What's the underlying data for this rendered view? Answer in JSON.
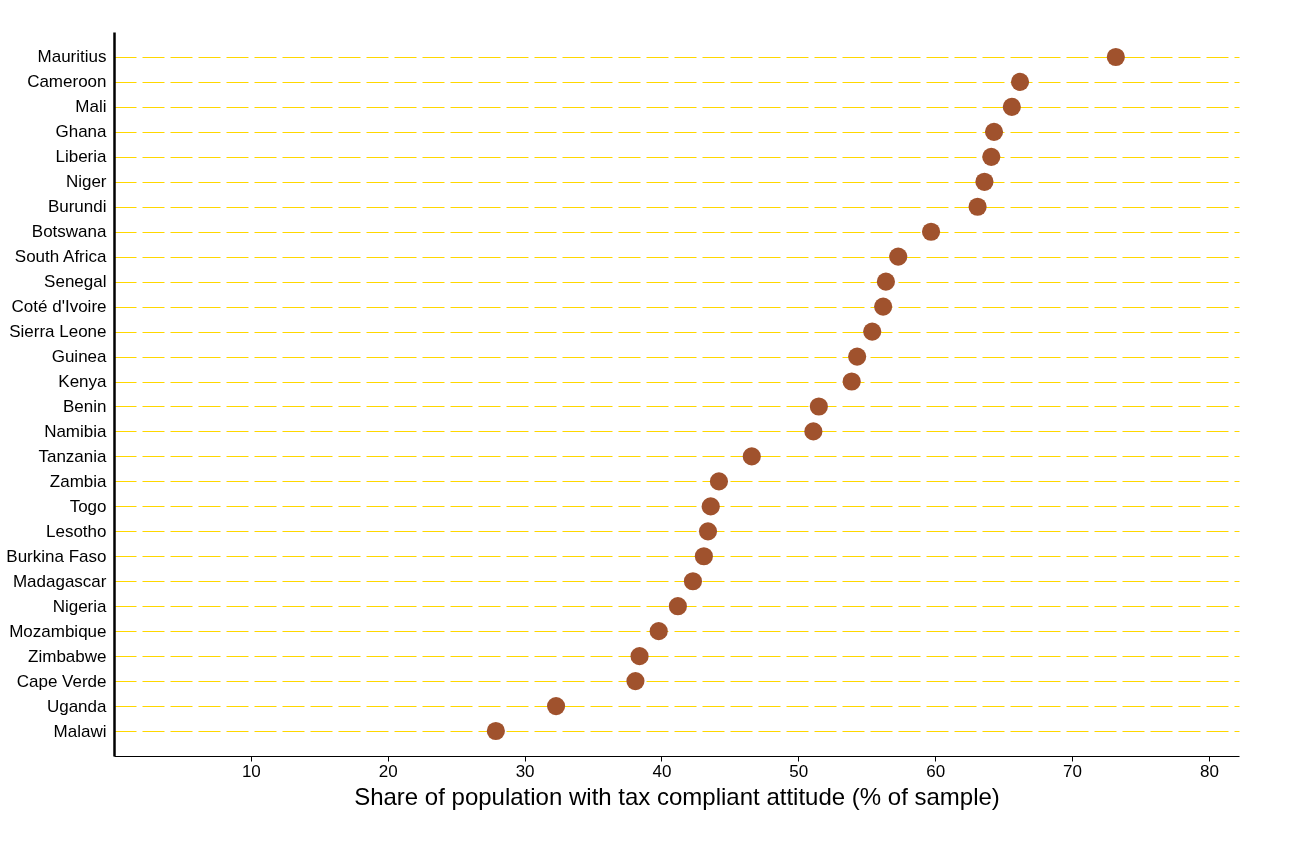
{
  "chart_data": {
    "type": "scatter",
    "xlabel": "Share of population with tax compliant attitude (% of sample)",
    "categories": [
      "Mauritius",
      "Cameroon",
      "Mali",
      "Ghana",
      "Liberia",
      "Niger",
      "Burundi",
      "Botswana",
      "South Africa",
      "Senegal",
      "Coté d'Ivoire",
      "Sierra Leone",
      "Guinea",
      "Kenya",
      "Benin",
      "Namibia",
      "Tanzania",
      "Zambia",
      "Togo",
      "Lesotho",
      "Burkina Faso",
      "Madagascar",
      "Nigeria",
      "Mozambique",
      "Zimbabwe",
      "Cape Verde",
      "Uganda",
      "Malawi"
    ],
    "orientation": "horizontal",
    "series": [
      {
        "color": "#a0522d",
        "values": [
          73.2,
          66.2,
          65.6,
          64.3,
          64.1,
          63.6,
          63.1,
          59.7,
          57.3,
          56.4,
          56.2,
          55.4,
          54.3,
          53.9,
          51.5,
          51.1,
          46.6,
          44.2,
          43.6,
          43.4,
          43.1,
          42.3,
          41.2,
          39.8,
          38.4,
          38.1,
          32.3,
          27.9
        ]
      }
    ],
    "xlim": [
      0,
      82.2
    ],
    "xticks": [
      10,
      20,
      30,
      40,
      50,
      60,
      70,
      80
    ],
    "grid": "y",
    "line_style": "dashed",
    "marker": "circle",
    "legend": false
  }
}
